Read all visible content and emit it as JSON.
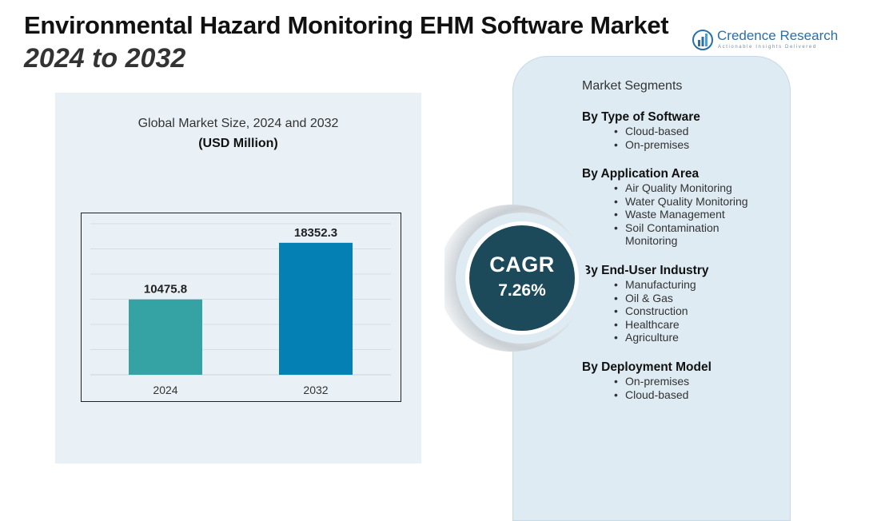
{
  "header": {
    "title": "Environmental Hazard Monitoring EHM Software Market",
    "subtitle": "2024 to 2032"
  },
  "logo": {
    "name_part1": "Credence",
    "name_part2": " Research",
    "tagline": "Actionable Insights Delivered"
  },
  "chart_data": {
    "type": "bar",
    "title": "Global Market Size, 2024 and 2032",
    "unit_label": "(USD Million)",
    "categories": [
      "2024",
      "2032"
    ],
    "values": [
      10475.8,
      18352.3
    ],
    "value_labels": [
      "10475.8",
      "18352.3"
    ],
    "ylim": [
      0,
      21000
    ],
    "colors": [
      "#35a2a3",
      "#0480b5"
    ],
    "grid": true,
    "xlabel": "",
    "ylabel": ""
  },
  "cagr": {
    "label": "CAGR",
    "value": "7.26%"
  },
  "segments": {
    "title": "Market Segments",
    "groups": [
      {
        "heading": "By Type of Software",
        "items": [
          "Cloud-based",
          "On-premises"
        ]
      },
      {
        "heading": "By Application Area",
        "items": [
          "Air Quality Monitoring",
          "Water Quality Monitoring",
          "Waste Management",
          "Soil Contamination Monitoring"
        ]
      },
      {
        "heading": "By End-User Industry",
        "items": [
          "Manufacturing",
          "Oil & Gas",
          "Construction",
          "Healthcare",
          "Agriculture"
        ]
      },
      {
        "heading": "By Deployment Model",
        "items": [
          "On-premises",
          "Cloud-based"
        ]
      }
    ]
  }
}
